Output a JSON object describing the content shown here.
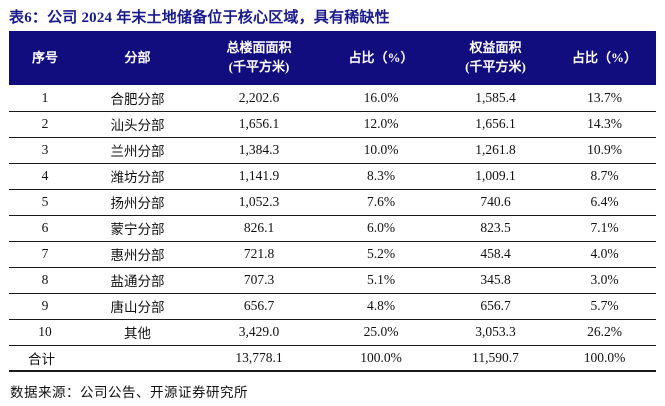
{
  "title": "表6：公司 2024 年末土地储备位于核心区域，具有稀缺性",
  "colors": {
    "header_bg": "#120d7e",
    "title_color": "#1a1a8c",
    "border_color": "#1a1a1a",
    "header_text": "#ffffff",
    "body_text": "#111111"
  },
  "table": {
    "headers": [
      {
        "line1": "序号",
        "line2": ""
      },
      {
        "line1": "分部",
        "line2": ""
      },
      {
        "line1": "总楼面面积",
        "line2": "(千平方米)"
      },
      {
        "line1": "占比（%）",
        "line2": ""
      },
      {
        "line1": "权益面积",
        "line2": "(千平方米)"
      },
      {
        "line1": "占比（%）",
        "line2": ""
      }
    ],
    "rows": [
      {
        "no": "1",
        "name": "合肥分部",
        "gfa": "2,202.6",
        "gfa_pct": "16.0%",
        "equity": "1,585.4",
        "equity_pct": "13.7%"
      },
      {
        "no": "2",
        "name": "汕头分部",
        "gfa": "1,656.1",
        "gfa_pct": "12.0%",
        "equity": "1,656.1",
        "equity_pct": "14.3%"
      },
      {
        "no": "3",
        "name": "兰州分部",
        "gfa": "1,384.3",
        "gfa_pct": "10.0%",
        "equity": "1,261.8",
        "equity_pct": "10.9%"
      },
      {
        "no": "4",
        "name": "潍坊分部",
        "gfa": "1,141.9",
        "gfa_pct": "8.3%",
        "equity": "1,009.1",
        "equity_pct": "8.7%"
      },
      {
        "no": "5",
        "name": "扬州分部",
        "gfa": "1,052.3",
        "gfa_pct": "7.6%",
        "equity": "740.6",
        "equity_pct": "6.4%"
      },
      {
        "no": "6",
        "name": "蒙宁分部",
        "gfa": "826.1",
        "gfa_pct": "6.0%",
        "equity": "823.5",
        "equity_pct": "7.1%"
      },
      {
        "no": "7",
        "name": "惠州分部",
        "gfa": "721.8",
        "gfa_pct": "5.2%",
        "equity": "458.4",
        "equity_pct": "4.0%"
      },
      {
        "no": "8",
        "name": "盐通分部",
        "gfa": "707.3",
        "gfa_pct": "5.1%",
        "equity": "345.8",
        "equity_pct": "3.0%"
      },
      {
        "no": "9",
        "name": "唐山分部",
        "gfa": "656.7",
        "gfa_pct": "4.8%",
        "equity": "656.7",
        "equity_pct": "5.7%"
      },
      {
        "no": "10",
        "name": "其他",
        "gfa": "3,429.0",
        "gfa_pct": "25.0%",
        "equity": "3,053.3",
        "equity_pct": "26.2%"
      }
    ],
    "total": {
      "label": "合计",
      "gfa": "13,778.1",
      "gfa_pct": "100.0%",
      "equity": "11,590.7",
      "equity_pct": "100.0%"
    }
  },
  "footer": {
    "source": "数据来源：公司公告、开源证券研究所"
  }
}
